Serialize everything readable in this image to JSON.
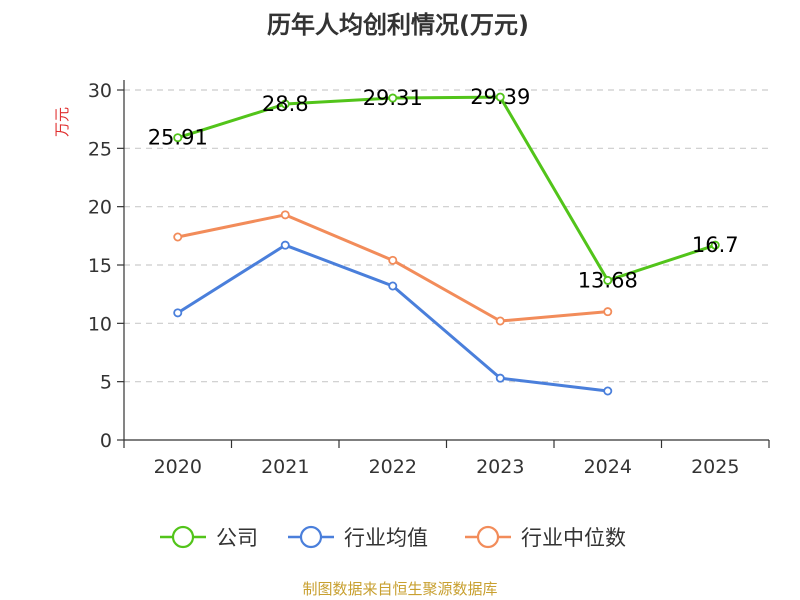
{
  "colors": {
    "company": "#52c41a",
    "industry_avg": "#4a7fdb",
    "industry_median": "#f28c5a",
    "ylabel": "#e03030",
    "source": "#c8a030",
    "grid": "#cccccc",
    "axis": "#333333"
  },
  "chart_data": {
    "type": "line",
    "title": "历年人均创利情况(万元)",
    "xlabel": "",
    "ylabel": "万元",
    "categories": [
      "2020",
      "2021",
      "2022",
      "2023",
      "2024",
      "2025"
    ],
    "ylim": [
      0,
      30
    ],
    "yticks": [
      "0",
      "5",
      "10",
      "15",
      "20",
      "25",
      "30"
    ],
    "grid": true,
    "legend_position": "bottom",
    "series": [
      {
        "name": "公司",
        "key": "company",
        "values": [
          25.91,
          28.8,
          29.31,
          29.39,
          13.68,
          16.7
        ],
        "labels": [
          "25.91",
          "28.8",
          "29.31",
          "29.39",
          "13.68",
          "16.7"
        ]
      },
      {
        "name": "行业均值",
        "key": "industry_avg",
        "values": [
          10.9,
          16.7,
          13.2,
          5.3,
          4.2,
          null
        ]
      },
      {
        "name": "行业中位数",
        "key": "industry_median",
        "values": [
          17.4,
          19.3,
          15.4,
          10.2,
          11.0,
          null
        ]
      }
    ],
    "source": "制图数据来自恒生聚源数据库"
  }
}
